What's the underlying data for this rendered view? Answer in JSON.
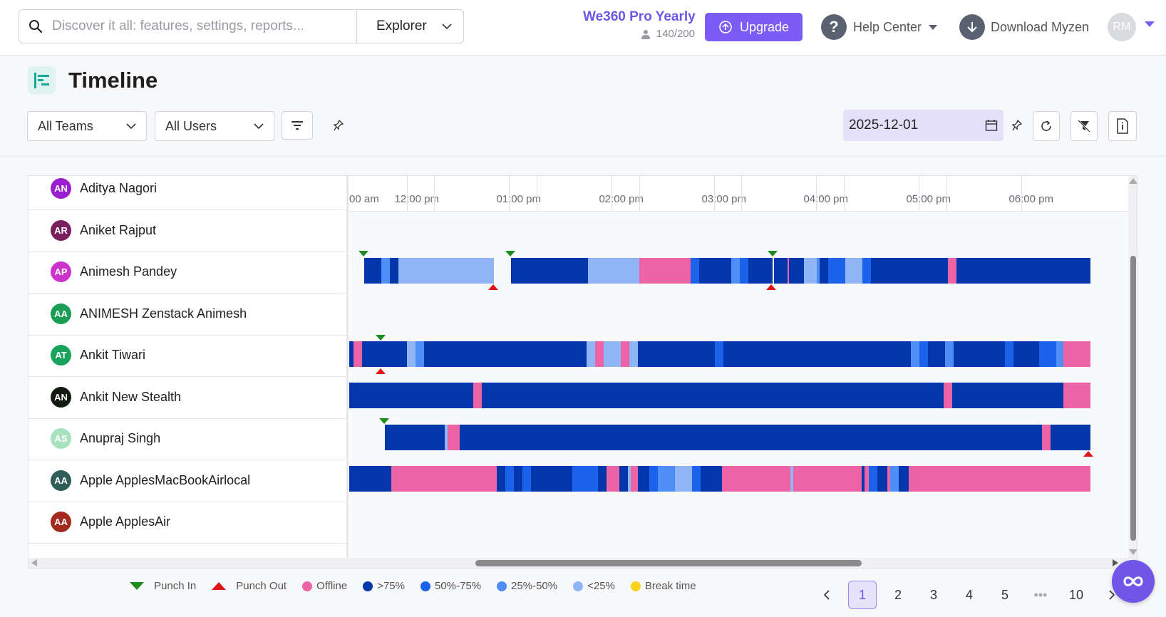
{
  "search": {
    "placeholder": "Discover it all: features, settings, reports...",
    "scope": "Explorer"
  },
  "plan": {
    "name": "We360 Pro Yearly",
    "seats": "140/200"
  },
  "header": {
    "upgrade_label": "Upgrade",
    "help_label": "Help Center",
    "download_label": "Download Myzen",
    "avatar_initials": "RM"
  },
  "page": {
    "title": "Timeline"
  },
  "filters": {
    "teams": "All Teams",
    "users": "All Users",
    "date": "2025-12-01"
  },
  "hours": [
    "00 am",
    "12:00 pm",
    "01:00 pm",
    "02:00 pm",
    "03:00 pm",
    "04:00 pm",
    "05:00 pm",
    "06:00 pm"
  ],
  "users": [
    {
      "initials": "AN",
      "name": "Aditya Nagori",
      "color": "#9b1fd1"
    },
    {
      "initials": "AR",
      "name": "Aniket Rajput",
      "color": "#7a1f5e"
    },
    {
      "initials": "AP",
      "name": "Animesh Pandey",
      "color": "#cc33cc"
    },
    {
      "initials": "AA",
      "name": "ANIMESH Zenstack Animesh",
      "color": "#1a9e55"
    },
    {
      "initials": "AT",
      "name": "Ankit Tiwari",
      "color": "#1aa35c"
    },
    {
      "initials": "AN",
      "name": "Ankit New Stealth",
      "color": "#111a11"
    },
    {
      "initials": "AS",
      "name": "Anupraj Singh",
      "color": "#a7e3c0"
    },
    {
      "initials": "AA",
      "name": "Apple ApplesMacBookAirlocal",
      "color": "#2f5e5a"
    },
    {
      "initials": "AA",
      "name": "Apple ApplesAir",
      "color": "#a32a1f"
    }
  ],
  "legend": [
    {
      "label": "Punch In",
      "kind": "punch-in",
      "color": "#1c8c1c"
    },
    {
      "label": "Punch Out",
      "kind": "punch-out",
      "color": "#e01616"
    },
    {
      "label": "Offline",
      "kind": "dot",
      "color": "#ed64a6"
    },
    {
      "label": ">75%",
      "kind": "dot",
      "color": "#0537ac"
    },
    {
      "label": "50%-75%",
      "kind": "dot",
      "color": "#1a63ea"
    },
    {
      "label": "25%-50%",
      "kind": "dot",
      "color": "#4f8ef7"
    },
    {
      "label": "<25%",
      "kind": "dot",
      "color": "#8fb5f7"
    },
    {
      "label": "Break time",
      "kind": "dot",
      "color": "#f7d21a"
    }
  ],
  "pagination": {
    "current": "1",
    "pages": [
      "1",
      "2",
      "3",
      "4",
      "5",
      "10"
    ],
    "ellipsis": "•••"
  }
}
